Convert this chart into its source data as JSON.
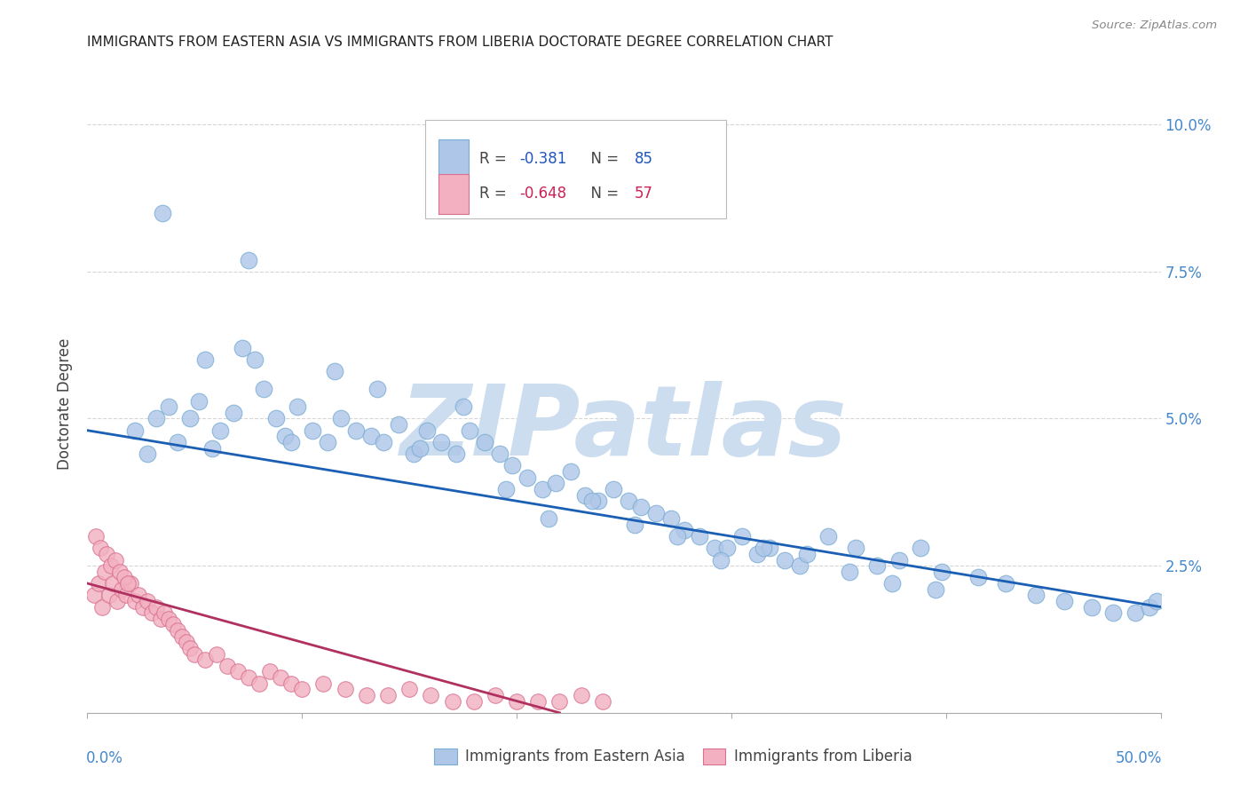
{
  "title": "IMMIGRANTS FROM EASTERN ASIA VS IMMIGRANTS FROM LIBERIA DOCTORATE DEGREE CORRELATION CHART",
  "source": "Source: ZipAtlas.com",
  "ylabel": "Doctorate Degree",
  "xlim": [
    0.0,
    0.5
  ],
  "ylim": [
    0.0,
    0.105
  ],
  "yticks": [
    0.0,
    0.025,
    0.05,
    0.075,
    0.1
  ],
  "ytick_labels": [
    "",
    "2.5%",
    "5.0%",
    "7.5%",
    "10.0%"
  ],
  "xtick_labels": [
    "0.0%",
    "",
    "",
    "",
    "",
    "50.0%"
  ],
  "blue_R": -0.381,
  "blue_N": 85,
  "pink_R": -0.648,
  "pink_N": 57,
  "blue_color": "#aec6e8",
  "blue_edge_color": "#7aadd4",
  "pink_color": "#f2b0c0",
  "pink_edge_color": "#d97090",
  "blue_line_color": "#1a5fb4",
  "pink_line_color": "#b03060",
  "watermark_color": "#ccddf0",
  "watermark_text": "ZIPatlas",
  "legend_blue_label": "Immigrants from Eastern Asia",
  "legend_pink_label": "Immigrants from Liberia",
  "blue_line_x0": 0.0,
  "blue_line_y0": 0.048,
  "blue_line_x1": 0.5,
  "blue_line_y1": 0.018,
  "pink_line_x0": 0.0,
  "pink_line_y0": 0.022,
  "pink_line_x1": 0.22,
  "pink_line_y1": 0.0
}
